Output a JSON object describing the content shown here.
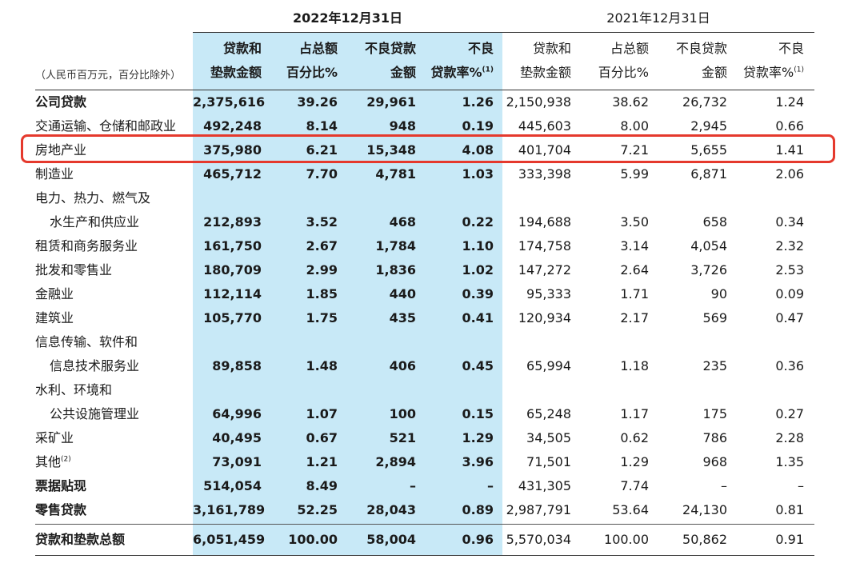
{
  "periods": {
    "y2022": "2022年12月31日",
    "y2021": "2021年12月31日"
  },
  "unit_note": "（人民币百万元，百分比除外）",
  "headers": {
    "line1": [
      "贷款和",
      "占总额",
      "不良贷款",
      "不良"
    ],
    "line2": [
      "垫款金额",
      "百分比%",
      "金额",
      "贷款率%"
    ],
    "footnote_mark": "(1)"
  },
  "rows": [
    {
      "label": "公司贷款",
      "bold": true,
      "values": [
        "2,375,616",
        "39.26",
        "29,961",
        "1.26",
        "2,150,938",
        "38.62",
        "26,732",
        "1.24"
      ]
    },
    {
      "label": "交通运输、仓储和邮政业",
      "values": [
        "492,248",
        "8.14",
        "948",
        "0.19",
        "445,603",
        "8.00",
        "2,945",
        "0.66"
      ]
    },
    {
      "label": "房地产业",
      "highlight": true,
      "values": [
        "375,980",
        "6.21",
        "15,348",
        "4.08",
        "401,704",
        "7.21",
        "5,655",
        "1.41"
      ]
    },
    {
      "label": "制造业",
      "values": [
        "465,712",
        "7.70",
        "4,781",
        "1.03",
        "333,398",
        "5.99",
        "6,871",
        "2.06"
      ]
    },
    {
      "label": "电力、热力、燃气及",
      "values": [
        "",
        "",
        "",
        "",
        "",
        "",
        "",
        ""
      ]
    },
    {
      "label": "水生产和供应业",
      "indent": true,
      "values": [
        "212,893",
        "3.52",
        "468",
        "0.22",
        "194,688",
        "3.50",
        "658",
        "0.34"
      ]
    },
    {
      "label": "租赁和商务服务业",
      "values": [
        "161,750",
        "2.67",
        "1,784",
        "1.10",
        "174,758",
        "3.14",
        "4,054",
        "2.32"
      ]
    },
    {
      "label": "批发和零售业",
      "values": [
        "180,709",
        "2.99",
        "1,836",
        "1.02",
        "147,272",
        "2.64",
        "3,726",
        "2.53"
      ]
    },
    {
      "label": "金融业",
      "values": [
        "112,114",
        "1.85",
        "440",
        "0.39",
        "95,333",
        "1.71",
        "90",
        "0.09"
      ]
    },
    {
      "label": "建筑业",
      "values": [
        "105,770",
        "1.75",
        "435",
        "0.41",
        "120,934",
        "2.17",
        "569",
        "0.47"
      ]
    },
    {
      "label": "信息传输、软件和",
      "values": [
        "",
        "",
        "",
        "",
        "",
        "",
        "",
        ""
      ]
    },
    {
      "label": "信息技术服务业",
      "indent": true,
      "values": [
        "89,858",
        "1.48",
        "406",
        "0.45",
        "65,994",
        "1.18",
        "235",
        "0.36"
      ]
    },
    {
      "label": "水利、环境和",
      "values": [
        "",
        "",
        "",
        "",
        "",
        "",
        "",
        ""
      ]
    },
    {
      "label": "公共设施管理业",
      "indent": true,
      "values": [
        "64,996",
        "1.07",
        "100",
        "0.15",
        "65,248",
        "1.17",
        "175",
        "0.27"
      ]
    },
    {
      "label": "采矿业",
      "values": [
        "40,495",
        "0.67",
        "521",
        "1.29",
        "34,505",
        "0.62",
        "786",
        "2.28"
      ]
    },
    {
      "label": "其他",
      "sup": "(2)",
      "values": [
        "73,091",
        "1.21",
        "2,894",
        "3.96",
        "71,501",
        "1.29",
        "968",
        "1.35"
      ]
    },
    {
      "label": "票据贴现",
      "bold": true,
      "values": [
        "514,054",
        "8.49",
        "–",
        "–",
        "431,305",
        "7.74",
        "–",
        "–"
      ]
    },
    {
      "label": "零售贷款",
      "bold": true,
      "values": [
        "3,161,789",
        "52.25",
        "28,043",
        "0.89",
        "2,987,791",
        "53.64",
        "24,130",
        "0.81"
      ]
    }
  ],
  "total": {
    "label": "贷款和垫款总额",
    "values": [
      "6,051,459",
      "100.00",
      "58,004",
      "0.96",
      "5,570,034",
      "100.00",
      "50,862",
      "0.91"
    ]
  },
  "colors": {
    "shade": "#c8e9f7",
    "highlight_border": "#e5392d"
  }
}
